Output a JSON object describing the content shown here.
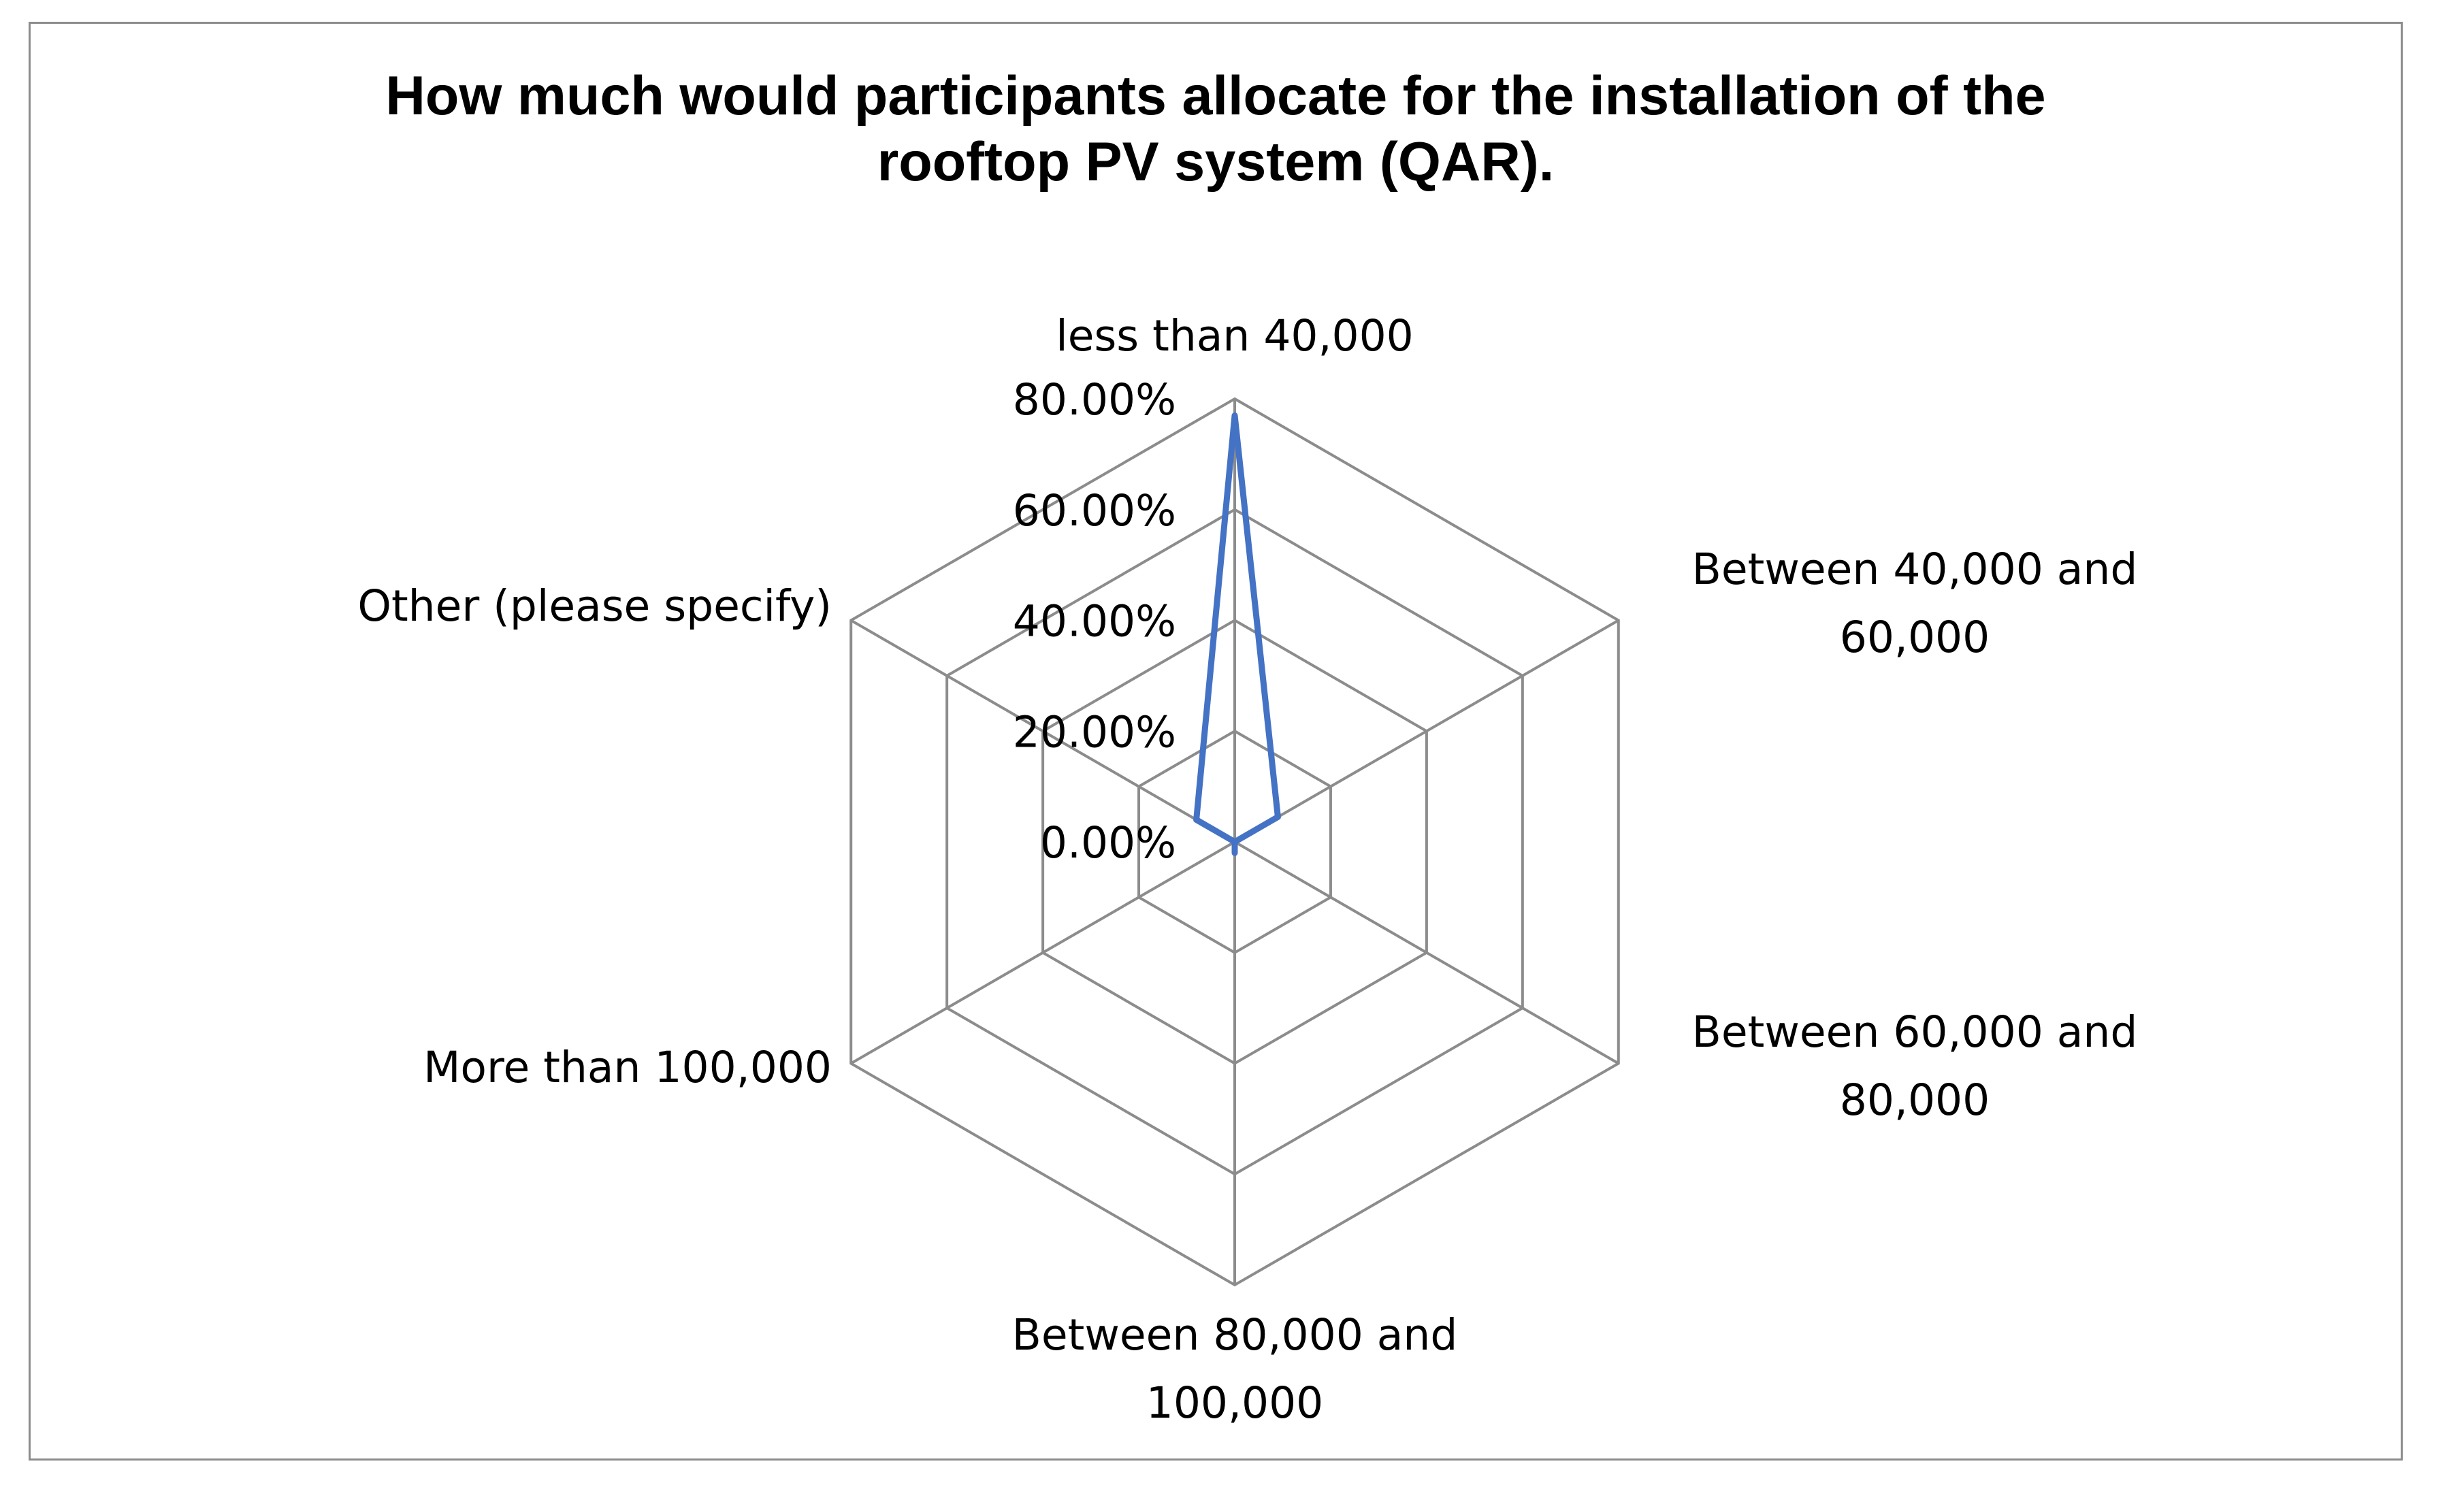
{
  "chart_data": {
    "type": "radar",
    "title": [
      "How much would participants allocate for the installation of the",
      "rooftop PV system (QAR)."
    ],
    "categories": [
      [
        "less than 40,000"
      ],
      [
        "Between 40,000 and",
        "60,000"
      ],
      [
        "Between 60,000 and",
        "80,000"
      ],
      [
        "Between 80,000 and",
        "100,000"
      ],
      [
        "More than 100,000"
      ],
      [
        "Other (please specify)"
      ]
    ],
    "series": [
      {
        "values": [
          0.77,
          0.09,
          0.0,
          0.02,
          0.0,
          0.08
        ]
      }
    ],
    "rlim": [
      0,
      0.8
    ],
    "ticks": [
      0,
      0.2,
      0.4,
      0.6,
      0.8
    ],
    "tick_labels": [
      "0.00%",
      "20.00%",
      "40.00%",
      "60.00%",
      "80.00%"
    ],
    "legend": "none",
    "grid": true,
    "colors": {
      "series": "#4472C4",
      "grid": "#8c8c8c",
      "frame": "#8c8c8c",
      "text": "#000000"
    }
  }
}
